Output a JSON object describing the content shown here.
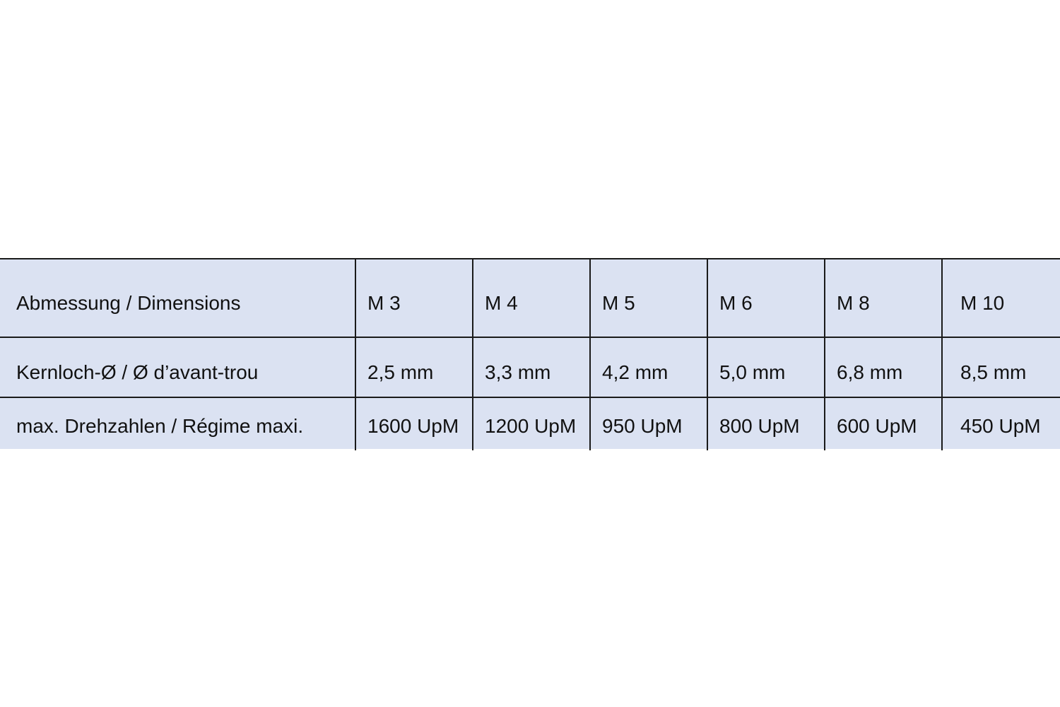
{
  "table": {
    "background_color": "#dbe2f2",
    "rows": [
      [
        "Abmessung / Dimensions",
        "M 3",
        "M 4",
        "M 5",
        "M 6",
        "M 8",
        "M 10"
      ],
      [
        "Kernloch-Ø / Ø d’avant-trou",
        "2,5 mm",
        "3,3 mm",
        "4,2 mm",
        "5,0 mm",
        "6,8 mm",
        "8,5 mm"
      ],
      [
        "max. Drehzahlen / Régime maxi.",
        "1600 UpM",
        "1200 UpM",
        "950 UpM",
        "800 UpM",
        "600 UpM",
        "450 UpM"
      ]
    ]
  }
}
